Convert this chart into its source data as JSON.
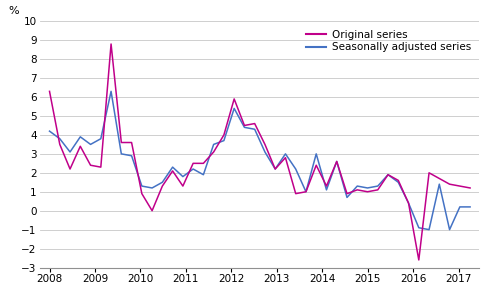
{
  "ylabel": "%",
  "ylim": [
    -3,
    10
  ],
  "yticks": [
    -3,
    -2,
    -1,
    0,
    1,
    2,
    3,
    4,
    5,
    6,
    7,
    8,
    9,
    10
  ],
  "x_labels": [
    "2008",
    "2009",
    "2010",
    "2011",
    "2012",
    "2013",
    "2014",
    "2015",
    "2016",
    "2017"
  ],
  "x_tick_positions": [
    2008,
    2009,
    2010,
    2011,
    2012,
    2013,
    2014,
    2015,
    2016,
    2017
  ],
  "xlim_left": 2007.78,
  "xlim_right": 2017.45,
  "original_color": "#c0008a",
  "adjusted_color": "#4472c4",
  "legend_labels": [
    "Original series",
    "Seasonally adjusted series"
  ],
  "original_series": [
    6.3,
    3.5,
    2.2,
    3.4,
    2.4,
    2.3,
    8.8,
    3.6,
    3.6,
    0.9,
    0.0,
    1.3,
    2.1,
    1.3,
    2.5,
    2.5,
    3.1,
    4.0,
    5.9,
    4.5,
    4.6,
    3.5,
    2.2,
    2.8,
    0.9,
    1.0,
    2.4,
    1.3,
    2.6,
    0.9,
    1.1,
    1.0,
    1.1,
    1.9,
    1.6,
    0.4,
    -2.6,
    2.0,
    1.7,
    1.4,
    1.3,
    1.2
  ],
  "adjusted_series": [
    4.2,
    3.8,
    3.1,
    3.9,
    3.5,
    3.8,
    6.3,
    3.0,
    2.9,
    1.3,
    1.2,
    1.5,
    2.3,
    1.8,
    2.2,
    1.9,
    3.5,
    3.7,
    5.4,
    4.4,
    4.3,
    3.1,
    2.2,
    3.0,
    2.2,
    1.0,
    3.0,
    1.1,
    2.6,
    0.7,
    1.3,
    1.2,
    1.3,
    1.9,
    1.5,
    0.4,
    -0.9,
    -1.0,
    1.4,
    -1.0,
    0.2,
    0.2
  ],
  "n_points": 42,
  "x_start": 2008.0,
  "x_end": 2017.25,
  "background_color": "#ffffff",
  "grid_color": "#c8c8c8",
  "line_width": 1.1,
  "tick_labelsize": 7.5,
  "legend_fontsize": 7.5
}
